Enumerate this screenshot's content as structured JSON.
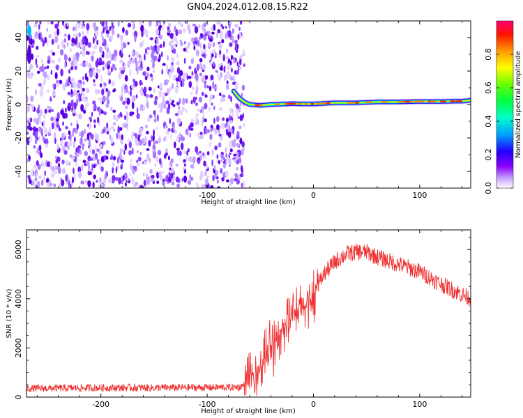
{
  "title": "GN04.2024.012.08.15.R22",
  "chart_data": [
    {
      "type": "heatmap",
      "xlabel": "Height of straight line (km)",
      "ylabel": "Frequency (Hz)",
      "xlim": [
        -270,
        148
      ],
      "ylim": [
        -50,
        50
      ],
      "x_ticks": [
        -200,
        -100,
        0,
        100
      ],
      "y_ticks": [
        -40,
        -20,
        0,
        20,
        40
      ],
      "noise_region_x": [
        -270,
        -65
      ],
      "signal_track": {
        "x": [
          -75,
          -70,
          -65,
          -60,
          -50,
          -40,
          -30,
          -20,
          -10,
          0,
          20,
          40,
          60,
          80,
          100,
          120,
          140,
          148
        ],
        "frequency_hz": [
          8,
          4,
          1.5,
          0,
          -0.5,
          0,
          0.2,
          0.5,
          0.3,
          0.3,
          1,
          1,
          1.5,
          1.5,
          1.8,
          1.8,
          2,
          2.5
        ]
      },
      "colorbar": {
        "label": "Normalized spectral amplitude",
        "range": [
          0,
          1
        ],
        "ticks": [
          0.0,
          0.2,
          0.4,
          0.6,
          0.8
        ],
        "colormap": [
          "#ffffff",
          "#8a00ff",
          "#0000ff",
          "#00ccff",
          "#00ff66",
          "#66ff00",
          "#ffff00",
          "#ff8800",
          "#ff0000",
          "#ff0088"
        ]
      }
    },
    {
      "type": "line",
      "xlabel": "Height of straight line (km)",
      "ylabel": "SNR (10 * v/v)",
      "xlim": [
        -270,
        148
      ],
      "ylim": [
        0,
        6800
      ],
      "x_ticks": [
        -200,
        -100,
        0,
        100
      ],
      "y_ticks": [
        0,
        2000,
        4000,
        6000
      ],
      "line_color": "#ee3333",
      "envelope": {
        "x": [
          -270,
          -200,
          -150,
          -100,
          -70,
          -60,
          -50,
          -40,
          -30,
          -20,
          -10,
          0,
          10,
          20,
          30,
          40,
          50,
          60,
          80,
          100,
          120,
          148
        ],
        "y": [
          350,
          380,
          380,
          390,
          400,
          600,
          1200,
          2200,
          2800,
          3200,
          3600,
          4200,
          5000,
          5500,
          5800,
          5900,
          5900,
          5700,
          5400,
          5100,
          4600,
          4000
        ]
      }
    }
  ]
}
